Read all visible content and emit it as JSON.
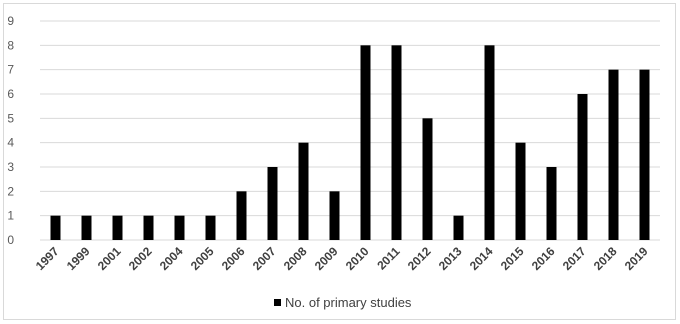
{
  "chart_data": {
    "type": "bar",
    "title": "",
    "xlabel": "",
    "ylabel": "",
    "categories": [
      "1997",
      "1999",
      "2001",
      "2002",
      "2004",
      "2005",
      "2006",
      "2007",
      "2008",
      "2009",
      "2010",
      "2011",
      "2012",
      "2013",
      "2014",
      "2015",
      "2016",
      "2017",
      "2018",
      "2019"
    ],
    "series": [
      {
        "name": "No. of primary studies",
        "values": [
          1,
          1,
          1,
          1,
          1,
          1,
          2,
          3,
          4,
          2,
          8,
          8,
          5,
          1,
          8,
          4,
          3,
          6,
          7,
          7
        ],
        "color": "#000000"
      }
    ],
    "ylim": [
      0,
      9
    ],
    "yticks": [
      0,
      1,
      2,
      3,
      4,
      5,
      6,
      7,
      8,
      9
    ],
    "grid": true,
    "gridColor": "#d9d9d9",
    "legend_position": "bottom"
  }
}
